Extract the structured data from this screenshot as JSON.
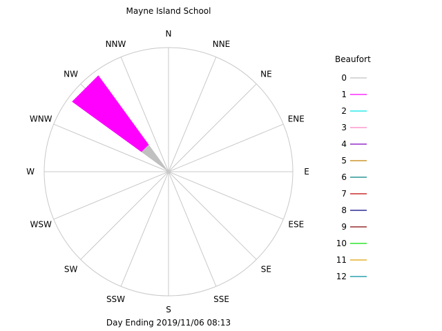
{
  "chart_data": {
    "type": "wind_rose",
    "title": "Mayne Island School",
    "footer": "Day Ending 2019/11/06 08:13",
    "directions": [
      "N",
      "NNE",
      "NE",
      "ENE",
      "E",
      "ESE",
      "SE",
      "SSE",
      "S",
      "SSW",
      "SW",
      "WSW",
      "W",
      "WNW",
      "NW",
      "NNW"
    ],
    "legend_title": "Beaufort",
    "legend": [
      {
        "label": "0",
        "color": "#c0c0c0"
      },
      {
        "label": "1",
        "color": "#ff00ff"
      },
      {
        "label": "2",
        "color": "#00e5e5"
      },
      {
        "label": "3",
        "color": "#ff80c0"
      },
      {
        "label": "4",
        "color": "#8000c0"
      },
      {
        "label": "5",
        "color": "#c08000"
      },
      {
        "label": "6",
        "color": "#008080"
      },
      {
        "label": "7",
        "color": "#c00000"
      },
      {
        "label": "8",
        "color": "#000080"
      },
      {
        "label": "9",
        "color": "#800000"
      },
      {
        "label": "10",
        "color": "#00e000"
      },
      {
        "label": "11",
        "color": "#e0a000"
      },
      {
        "label": "12",
        "color": "#008ca0"
      }
    ],
    "petals": [
      {
        "direction": "NW",
        "segments": [
          {
            "beaufort": "0",
            "fraction": 0.27
          },
          {
            "beaufort": "1",
            "fraction": 0.96
          }
        ]
      }
    ],
    "grid": true,
    "legend_position": "right"
  }
}
